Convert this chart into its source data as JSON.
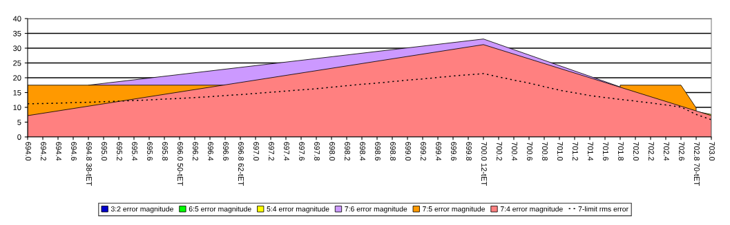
{
  "chart_data": {
    "type": "area",
    "categories": [
      "694.0",
      "694.2",
      "694.4",
      "694.6",
      "694.8 38-tET",
      "695.0",
      "695.2",
      "695.4",
      "695.6",
      "695.8",
      "696.0 50-tET",
      "696.2",
      "696.4",
      "696.6",
      "696.8 62-tET",
      "697.0",
      "697.2",
      "697.4",
      "697.6",
      "697.8",
      "698.0",
      "698.2",
      "698.4",
      "698.6",
      "698.8",
      "699.0",
      "699.2",
      "699.4",
      "699.6",
      "699.8",
      "700.0 12-tET",
      "700.2",
      "700.4",
      "700.6",
      "700.8",
      "701.0",
      "701.2",
      "701.4",
      "701.6",
      "701.8",
      "702.0",
      "702.2",
      "702.4",
      "702.6",
      "702.8 70-tET",
      "703.0"
    ],
    "series": [
      {
        "name": "3:2 error magnitude",
        "color": "#0000cc",
        "values": [
          null,
          null,
          null,
          null,
          null,
          null,
          null,
          null,
          null,
          null,
          null,
          null,
          null,
          null,
          null,
          null,
          null,
          null,
          null,
          null,
          null,
          null,
          null,
          null,
          null,
          null,
          null,
          null,
          null,
          null,
          null,
          null,
          null,
          null,
          null,
          null,
          null,
          null,
          null,
          null,
          null,
          null,
          null,
          null,
          null,
          null
        ]
      },
      {
        "name": "6:5 error magnitude",
        "color": "#00ff00",
        "values": [
          null,
          null,
          null,
          null,
          null,
          null,
          null,
          null,
          null,
          null,
          null,
          null,
          null,
          null,
          null,
          null,
          null,
          null,
          null,
          null,
          null,
          null,
          null,
          null,
          null,
          null,
          null,
          null,
          null,
          null,
          null,
          null,
          null,
          null,
          null,
          null,
          null,
          null,
          null,
          null,
          null,
          null,
          null,
          null,
          null,
          null
        ]
      },
      {
        "name": "5:4 error magnitude",
        "color": "#ffff00",
        "values": [
          null,
          null,
          null,
          null,
          null,
          null,
          null,
          null,
          null,
          null,
          null,
          null,
          null,
          null,
          null,
          null,
          null,
          null,
          null,
          null,
          null,
          null,
          null,
          null,
          null,
          null,
          null,
          null,
          null,
          null,
          null,
          null,
          null,
          null,
          null,
          null,
          null,
          null,
          null,
          null,
          null,
          null,
          null,
          null,
          8.6,
          7.6
        ]
      },
      {
        "name": "7:6 error magnitude",
        "color": "#cc99ff",
        "values": [
          null,
          null,
          null,
          null,
          17.5,
          18.1,
          18.7,
          19.3,
          19.9,
          20.5,
          21.1,
          21.7,
          22.3,
          22.9,
          23.5,
          24.1,
          24.7,
          25.3,
          25.9,
          26.5,
          27.1,
          27.7,
          28.3,
          28.9,
          29.5,
          30.1,
          30.7,
          31.3,
          31.9,
          32.5,
          33.1,
          31.3,
          29.5,
          27.7,
          25.9,
          24.1,
          22.3,
          20.5,
          18.7,
          16.9,
          null,
          null,
          null,
          null,
          null,
          null
        ]
      },
      {
        "name": "7:5 error magnitude",
        "color": "#ff9900",
        "values": [
          17.5,
          17.5,
          17.5,
          17.5,
          17.5,
          17.5,
          17.5,
          17.5,
          17.5,
          17.5,
          17.5,
          17.5,
          17.5,
          17.5,
          null,
          null,
          null,
          null,
          null,
          null,
          null,
          null,
          null,
          null,
          null,
          null,
          null,
          null,
          null,
          null,
          null,
          null,
          null,
          null,
          null,
          null,
          null,
          null,
          null,
          17.5,
          17.5,
          17.5,
          17.5,
          17.5,
          9.8,
          null
        ]
      },
      {
        "name": "7:4 error magnitude",
        "color": "#ff8080",
        "values": [
          7.2,
          8.0,
          8.8,
          9.6,
          10.4,
          11.2,
          12.0,
          12.8,
          13.6,
          14.4,
          15.2,
          16.0,
          16.8,
          17.6,
          18.4,
          19.2,
          20.0,
          20.8,
          21.6,
          22.4,
          23.2,
          24.0,
          24.8,
          25.6,
          26.4,
          27.2,
          28.0,
          28.8,
          29.6,
          30.4,
          31.2,
          29.6,
          28.0,
          26.4,
          24.8,
          23.2,
          21.6,
          20.0,
          18.4,
          16.8,
          15.2,
          13.6,
          12.0,
          10.4,
          8.8,
          7.2
        ]
      },
      {
        "name": "7-limit rms error",
        "type": "line",
        "line_style": "dotted",
        "color": "#000000",
        "values": [
          11.2,
          11.3,
          11.4,
          11.6,
          11.7,
          11.9,
          12.1,
          12.3,
          12.5,
          12.8,
          13.0,
          13.3,
          13.6,
          14.0,
          14.3,
          14.7,
          15.1,
          15.5,
          15.9,
          16.3,
          16.8,
          17.3,
          17.8,
          18.2,
          18.7,
          19.2,
          19.6,
          20.1,
          20.6,
          21.0,
          21.4,
          20.3,
          19.2,
          18.2,
          17.0,
          15.8,
          14.9,
          14.0,
          13.3,
          12.7,
          12.1,
          11.5,
          10.8,
          10.1,
          7.6,
          5.8
        ]
      }
    ],
    "ylim": [
      0,
      40
    ],
    "yticks": [
      0,
      5,
      10,
      15,
      20,
      25,
      30,
      35,
      40
    ],
    "grid": "y",
    "legend": "bottom"
  }
}
